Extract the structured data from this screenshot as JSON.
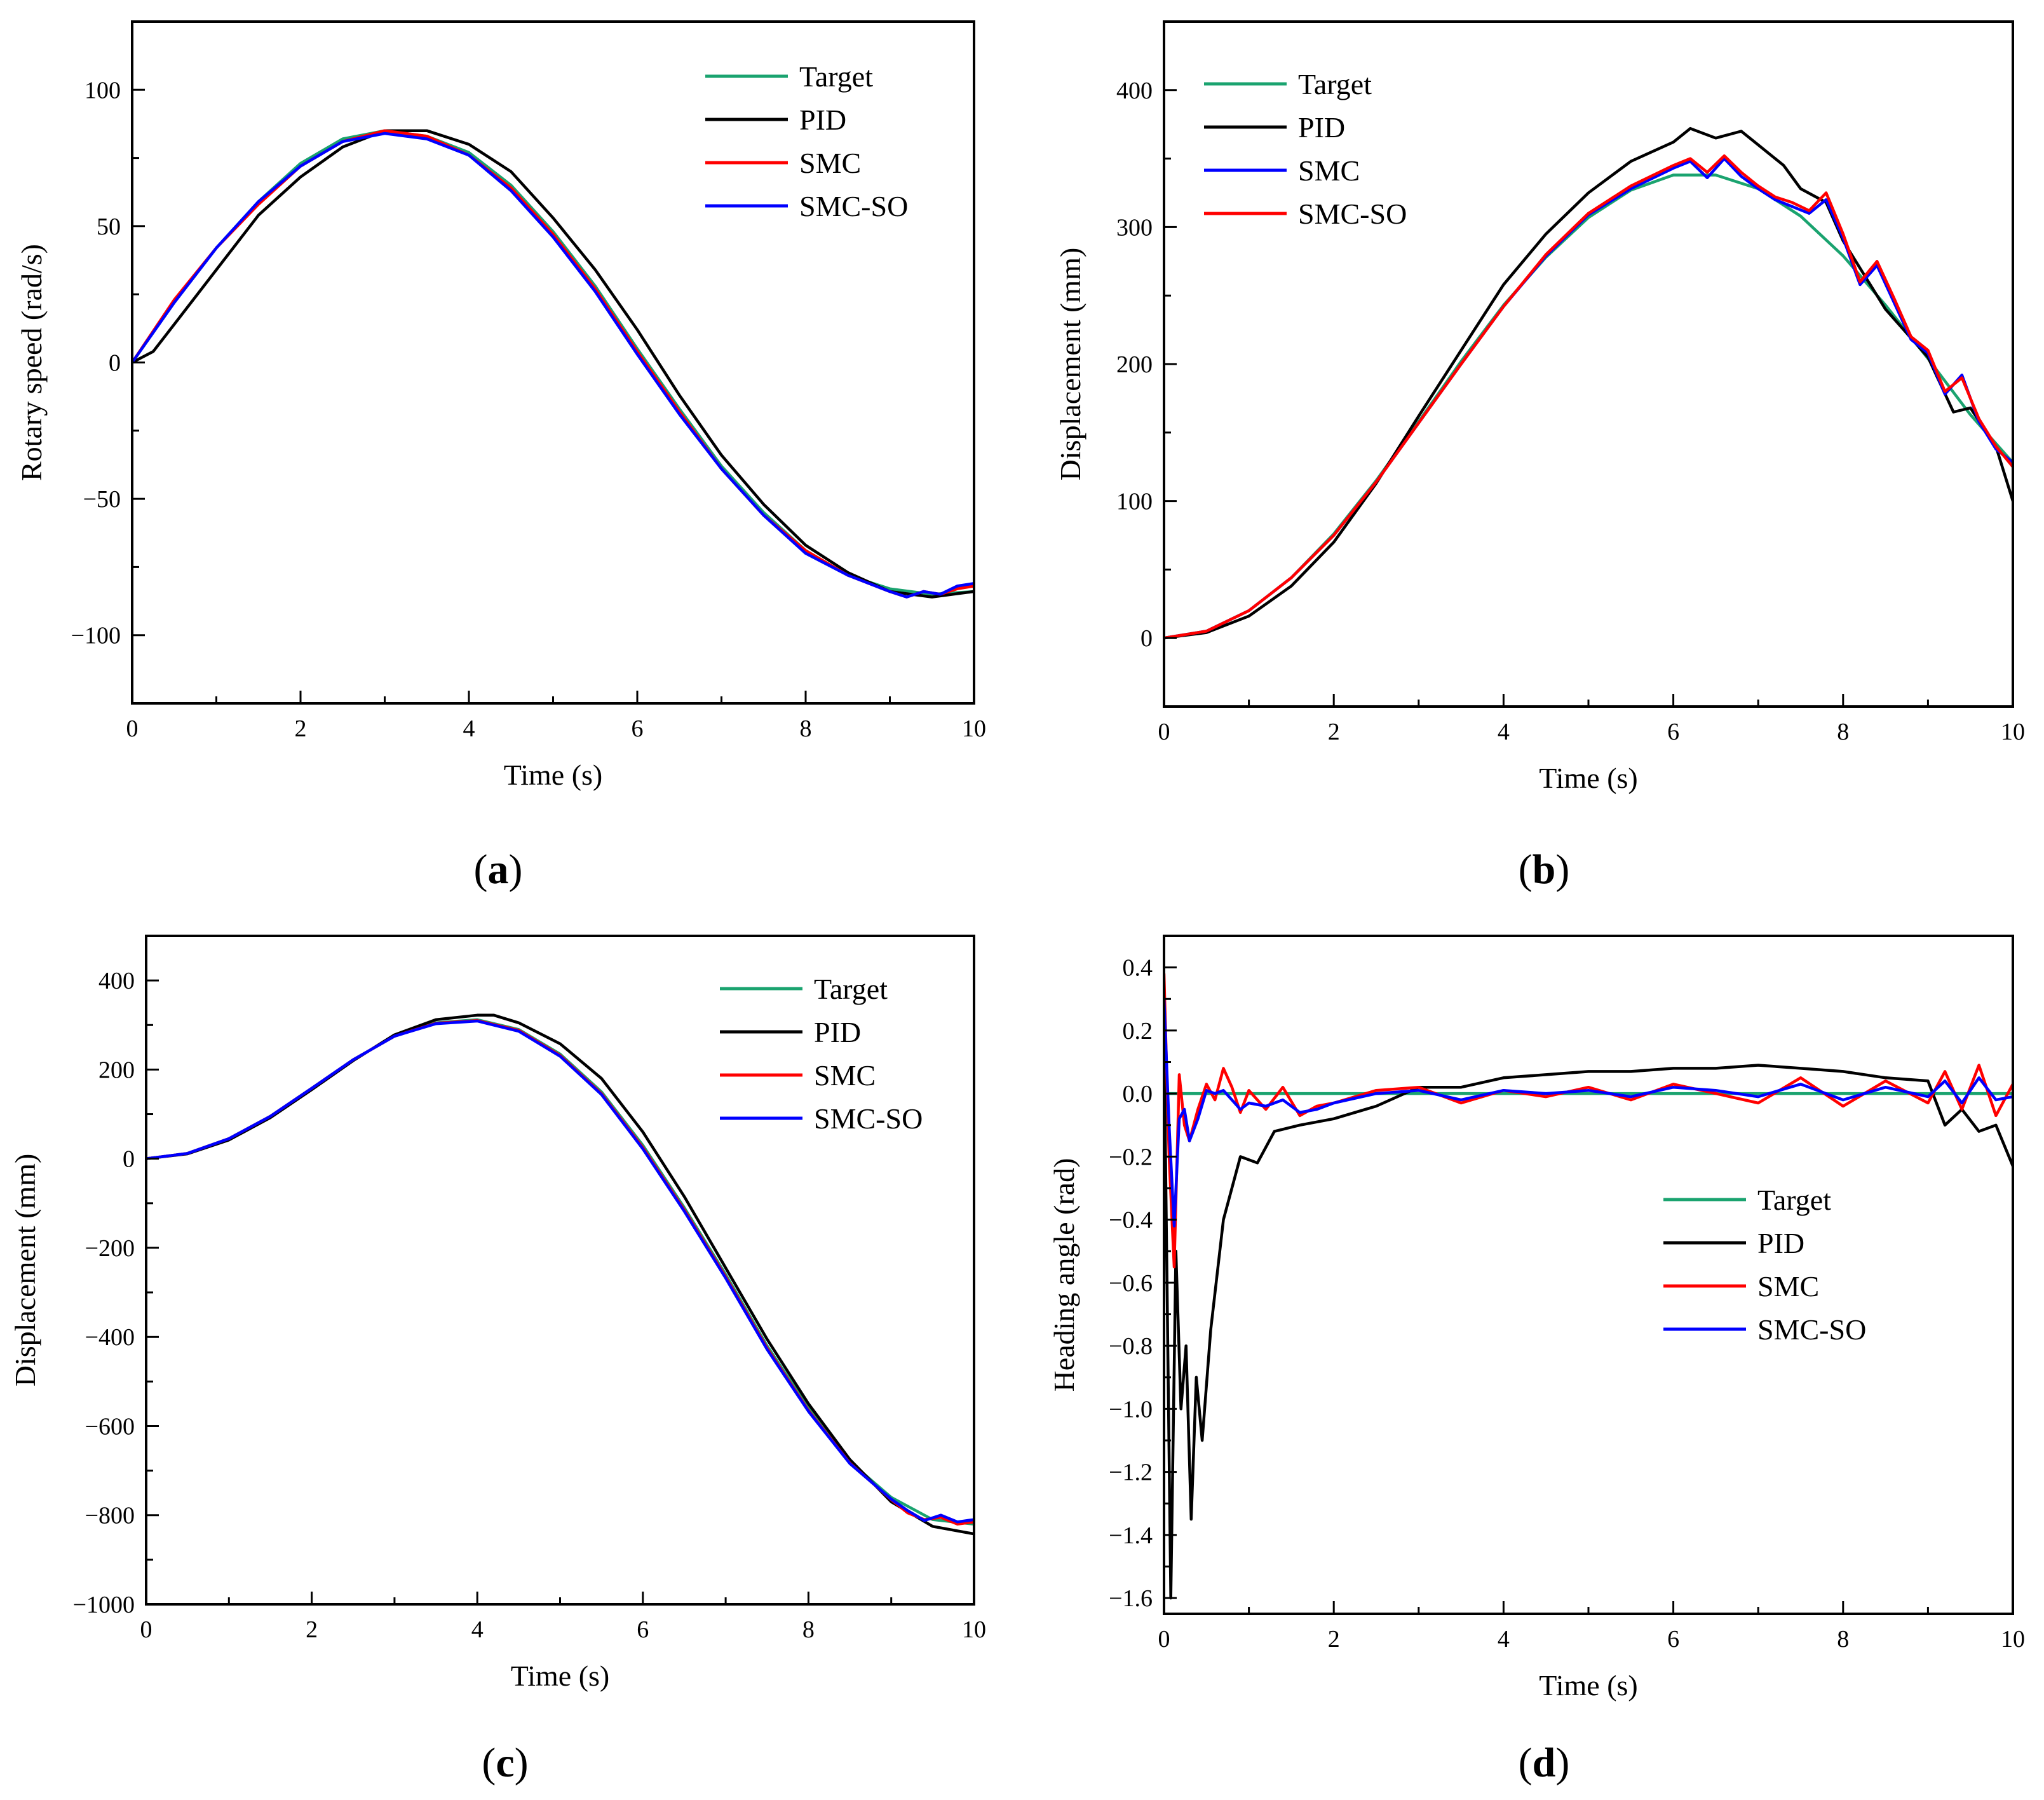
{
  "colors": {
    "Target": "#1aa36f",
    "PID": "#000000",
    "SMC": "#ff0000",
    "SMC-SO": "#0000ff"
  },
  "chart_data": [
    {
      "panel": "a",
      "type": "line",
      "title": "",
      "xlabel": "Time (s)",
      "ylabel": "Rotary speed (rad/s)",
      "xlim": [
        0,
        10
      ],
      "ylim": [
        -125,
        125
      ],
      "xticks": [
        0,
        2,
        4,
        6,
        8,
        10
      ],
      "xtick_labels": [
        "0",
        "2",
        "4",
        "6",
        "8",
        "10"
      ],
      "yticks": [
        -100,
        -50,
        0,
        50,
        100
      ],
      "ytick_labels": [
        "-100",
        "-50",
        "0",
        "50",
        "100"
      ],
      "legend_position": "top-right",
      "series": [
        {
          "name": "Target",
          "x": [
            0,
            0.5,
            1,
            1.5,
            2,
            2.5,
            3,
            3.5,
            4,
            4.5,
            5,
            5.5,
            6,
            6.5,
            7,
            7.5,
            8,
            8.5,
            9,
            9.5,
            10
          ],
          "y": [
            0,
            22,
            42,
            59,
            73,
            82,
            85,
            83,
            77,
            65,
            48,
            28,
            5,
            -17,
            -38,
            -55,
            -69,
            -78,
            -83,
            -85,
            -84
          ]
        },
        {
          "name": "PID",
          "x": [
            0,
            0.25,
            0.5,
            1,
            1.5,
            2,
            2.5,
            3,
            3.5,
            4,
            4.5,
            5,
            5.5,
            6,
            6.5,
            7,
            7.5,
            8,
            8.5,
            9,
            9.5,
            10
          ],
          "y": [
            0,
            4,
            14,
            34,
            54,
            68,
            79,
            85,
            85,
            80,
            70,
            53,
            34,
            12,
            -12,
            -34,
            -52,
            -67,
            -77,
            -84,
            -86,
            -84
          ]
        },
        {
          "name": "SMC",
          "x": [
            0,
            0.5,
            1,
            1.5,
            2,
            2.5,
            3,
            3.5,
            4,
            4.5,
            5,
            5.5,
            6,
            6.5,
            7,
            7.5,
            8,
            8.5,
            9,
            9.2,
            9.4,
            9.6,
            9.8,
            10
          ],
          "y": [
            0,
            23,
            42,
            58,
            72,
            81,
            85,
            83,
            76,
            64,
            47,
            27,
            4,
            -18,
            -39,
            -56,
            -69,
            -78,
            -84,
            -86,
            -84,
            -85,
            -83,
            -82
          ]
        },
        {
          "name": "SMC-SO",
          "x": [
            0,
            0.5,
            1,
            1.5,
            2,
            2.5,
            3,
            3.5,
            4,
            4.5,
            5,
            5.5,
            6,
            6.5,
            7,
            7.5,
            8,
            8.5,
            9,
            9.2,
            9.4,
            9.6,
            9.8,
            10
          ],
          "y": [
            0,
            22,
            42,
            59,
            72,
            81,
            84,
            82,
            76,
            63,
            46,
            26,
            3,
            -19,
            -39,
            -56,
            -70,
            -78,
            -84,
            -86,
            -84,
            -85,
            -82,
            -81
          ]
        }
      ]
    },
    {
      "panel": "b",
      "type": "line",
      "title": "",
      "xlabel": "Time (s)",
      "ylabel": "Displacement (mm)",
      "xlim": [
        0,
        10
      ],
      "ylim": [
        -50,
        450
      ],
      "xticks": [
        0,
        2,
        4,
        6,
        8,
        10
      ],
      "xtick_labels": [
        "0",
        "2",
        "4",
        "6",
        "8",
        "10"
      ],
      "yticks": [
        0,
        100,
        200,
        300,
        400
      ],
      "ytick_labels": [
        "0",
        "100",
        "200",
        "300",
        "400"
      ],
      "legend_position": "top-left",
      "series": [
        {
          "name": "Target",
          "x": [
            0,
            0.5,
            1,
            1.5,
            2,
            2.5,
            3,
            3.5,
            4,
            4.5,
            5,
            5.5,
            6,
            6.5,
            7,
            7.5,
            8,
            8.5,
            9,
            9.5,
            10
          ],
          "y": [
            0,
            5,
            20,
            44,
            76,
            115,
            158,
            202,
            243,
            278,
            307,
            327,
            338,
            338,
            328,
            308,
            279,
            243,
            204,
            163,
            128
          ]
        },
        {
          "name": "PID",
          "x": [
            0,
            0.5,
            1,
            1.5,
            2,
            2.5,
            3,
            3.5,
            4,
            4.5,
            5,
            5.5,
            6,
            6.2,
            6.5,
            6.8,
            7,
            7.3,
            7.5,
            7.8,
            8,
            8.5,
            9,
            9.3,
            9.5,
            9.8,
            10
          ],
          "y": [
            0,
            4,
            16,
            38,
            70,
            113,
            162,
            210,
            258,
            295,
            325,
            348,
            362,
            372,
            365,
            370,
            360,
            345,
            328,
            318,
            290,
            240,
            205,
            165,
            168,
            140,
            100
          ]
        },
        {
          "name": "SMC",
          "x": [
            0,
            0.5,
            1,
            1.5,
            2,
            2.5,
            3,
            3.5,
            4,
            4.5,
            5,
            5.5,
            6,
            6.2,
            6.4,
            6.6,
            6.8,
            7,
            7.2,
            7.4,
            7.6,
            7.8,
            8,
            8.2,
            8.4,
            8.6,
            8.8,
            9,
            9.2,
            9.4,
            9.6,
            9.8,
            10
          ],
          "y": [
            0,
            5,
            20,
            44,
            75,
            114,
            157,
            200,
            242,
            280,
            310,
            330,
            345,
            350,
            340,
            352,
            340,
            330,
            322,
            318,
            312,
            325,
            295,
            260,
            275,
            248,
            220,
            210,
            180,
            190,
            160,
            140,
            125
          ]
        },
        {
          "name": "SMC-SO",
          "x": [
            0,
            0.5,
            1,
            1.5,
            2,
            2.5,
            3,
            3.5,
            4,
            4.5,
            5,
            5.5,
            6,
            6.2,
            6.4,
            6.6,
            6.8,
            7,
            7.2,
            7.4,
            7.6,
            7.8,
            8,
            8.2,
            8.4,
            8.6,
            8.8,
            9,
            9.2,
            9.4,
            9.6,
            9.8,
            10
          ],
          "y": [
            0,
            5,
            20,
            44,
            75,
            114,
            157,
            200,
            242,
            279,
            309,
            328,
            343,
            348,
            336,
            350,
            337,
            328,
            320,
            315,
            310,
            320,
            292,
            258,
            272,
            245,
            218,
            208,
            178,
            192,
            158,
            138,
            128
          ]
        }
      ]
    },
    {
      "panel": "c",
      "type": "line",
      "title": "",
      "xlabel": "Time (s)",
      "ylabel": "Displacement (mm)",
      "xlim": [
        0,
        10
      ],
      "ylim": [
        -1000,
        500
      ],
      "xticks": [
        0,
        2,
        4,
        6,
        8,
        10
      ],
      "xtick_labels": [
        "0",
        "2",
        "4",
        "6",
        "8",
        "10"
      ],
      "yticks": [
        -1000,
        -800,
        -600,
        -400,
        -200,
        0,
        200,
        400
      ],
      "ytick_labels": [
        "-1000",
        "-800",
        "-600",
        "-400",
        "-200",
        "0",
        "200",
        "400"
      ],
      "legend_position": "top-right",
      "series": [
        {
          "name": "Target",
          "x": [
            0,
            0.5,
            1,
            1.5,
            2,
            2.5,
            3,
            3.5,
            4,
            4.5,
            5,
            5.5,
            6,
            6.5,
            7,
            7.5,
            8,
            8.5,
            9,
            9.5,
            10
          ],
          "y": [
            0,
            12,
            45,
            95,
            158,
            222,
            275,
            305,
            312,
            290,
            235,
            150,
            30,
            -110,
            -260,
            -420,
            -560,
            -680,
            -760,
            -810,
            -820
          ]
        },
        {
          "name": "PID",
          "x": [
            0,
            0.5,
            1,
            1.5,
            2,
            2.5,
            3,
            3.5,
            4,
            4.2,
            4.5,
            5,
            5.5,
            6,
            6.5,
            7,
            7.5,
            8,
            8.5,
            9,
            9.5,
            10
          ],
          "y": [
            0,
            11,
            42,
            92,
            155,
            220,
            278,
            312,
            322,
            322,
            305,
            258,
            180,
            60,
            -85,
            -245,
            -405,
            -550,
            -675,
            -770,
            -825,
            -842
          ]
        },
        {
          "name": "SMC",
          "x": [
            0,
            0.5,
            1,
            1.5,
            2,
            2.5,
            3,
            3.5,
            4,
            4.5,
            5,
            5.5,
            6,
            6.5,
            7,
            7.5,
            8,
            8.5,
            9,
            9.2,
            9.4,
            9.6,
            9.8,
            10
          ],
          "y": [
            0,
            12,
            45,
            95,
            158,
            222,
            275,
            304,
            310,
            288,
            232,
            146,
            25,
            -115,
            -265,
            -425,
            -565,
            -683,
            -765,
            -795,
            -810,
            -805,
            -820,
            -815
          ]
        },
        {
          "name": "SMC-SO",
          "x": [
            0,
            0.5,
            1,
            1.5,
            2,
            2.5,
            3,
            3.5,
            4,
            4.5,
            5,
            5.5,
            6,
            6.5,
            7,
            7.5,
            8,
            8.5,
            9,
            9.2,
            9.4,
            9.6,
            9.8,
            10
          ],
          "y": [
            0,
            12,
            45,
            95,
            158,
            222,
            275,
            303,
            309,
            286,
            230,
            144,
            22,
            -118,
            -268,
            -428,
            -567,
            -684,
            -764,
            -790,
            -812,
            -800,
            -815,
            -810
          ]
        }
      ]
    },
    {
      "panel": "d",
      "type": "line",
      "title": "",
      "xlabel": "Time (s)",
      "ylabel": "Heading angle (rad)",
      "xlim": [
        0,
        10
      ],
      "ylim": [
        -1.65,
        0.5
      ],
      "xticks": [
        0,
        2,
        4,
        6,
        8,
        10
      ],
      "xtick_labels": [
        "0",
        "2",
        "4",
        "6",
        "8",
        "10"
      ],
      "yticks": [
        -1.6,
        -1.4,
        -1.2,
        -1.0,
        -0.8,
        -0.6,
        -0.4,
        -0.2,
        0.0,
        0.2,
        0.4
      ],
      "ytick_labels": [
        "-1.6",
        "-1.4",
        "-1.2",
        "-1.0",
        "-0.8",
        "-0.6",
        "-0.4",
        "-0.2",
        "0.0",
        "0.2",
        "0.4"
      ],
      "legend_position": "center-right",
      "series": [
        {
          "name": "Target",
          "x": [
            0,
            10
          ],
          "y": [
            0,
            0
          ]
        },
        {
          "name": "PID",
          "x": [
            0,
            0.08,
            0.14,
            0.2,
            0.26,
            0.32,
            0.38,
            0.45,
            0.55,
            0.7,
            0.9,
            1.1,
            1.3,
            1.6,
            2.0,
            2.5,
            3.0,
            3.5,
            4.0,
            4.5,
            5.0,
            5.5,
            6.0,
            6.5,
            7.0,
            7.5,
            8.0,
            8.5,
            9.0,
            9.2,
            9.4,
            9.6,
            9.8,
            10
          ],
          "y": [
            0.2,
            -1.6,
            -0.5,
            -1.0,
            -0.8,
            -1.35,
            -0.9,
            -1.1,
            -0.75,
            -0.4,
            -0.2,
            -0.22,
            -0.12,
            -0.1,
            -0.08,
            -0.04,
            0.02,
            0.02,
            0.05,
            0.06,
            0.07,
            0.07,
            0.08,
            0.08,
            0.09,
            0.08,
            0.07,
            0.05,
            0.04,
            -0.1,
            -0.05,
            -0.12,
            -0.1,
            -0.23
          ]
        },
        {
          "name": "SMC",
          "x": [
            0,
            0.06,
            0.12,
            0.18,
            0.24,
            0.3,
            0.4,
            0.5,
            0.6,
            0.7,
            0.8,
            0.9,
            1.0,
            1.2,
            1.4,
            1.6,
            1.8,
            2.0,
            2.5,
            3.0,
            3.5,
            4.0,
            4.5,
            5.0,
            5.5,
            6.0,
            6.5,
            7.0,
            7.5,
            8.0,
            8.5,
            9.0,
            9.2,
            9.4,
            9.6,
            9.8,
            10
          ],
          "y": [
            0.38,
            -0.2,
            -0.55,
            0.06,
            -0.1,
            -0.15,
            -0.05,
            0.03,
            -0.02,
            0.08,
            0.02,
            -0.06,
            0.01,
            -0.05,
            0.02,
            -0.07,
            -0.04,
            -0.03,
            0.01,
            0.02,
            -0.03,
            0.01,
            -0.01,
            0.02,
            -0.02,
            0.03,
            0.0,
            -0.03,
            0.05,
            -0.04,
            0.04,
            -0.03,
            0.07,
            -0.05,
            0.09,
            -0.07,
            0.03
          ]
        },
        {
          "name": "SMC-SO",
          "x": [
            0,
            0.06,
            0.12,
            0.18,
            0.24,
            0.3,
            0.4,
            0.5,
            0.6,
            0.7,
            0.8,
            0.9,
            1.0,
            1.2,
            1.4,
            1.6,
            1.8,
            2.0,
            2.5,
            3.0,
            3.5,
            4.0,
            4.5,
            5.0,
            5.5,
            6.0,
            6.5,
            7.0,
            7.5,
            8.0,
            8.5,
            9.0,
            9.2,
            9.4,
            9.6,
            9.8,
            10
          ],
          "y": [
            0.3,
            -0.1,
            -0.42,
            -0.08,
            -0.05,
            -0.15,
            -0.08,
            0.01,
            0.0,
            0.01,
            -0.02,
            -0.05,
            -0.03,
            -0.04,
            -0.02,
            -0.06,
            -0.05,
            -0.03,
            0.0,
            0.01,
            -0.02,
            0.01,
            0.0,
            0.01,
            -0.01,
            0.02,
            0.01,
            -0.01,
            0.03,
            -0.02,
            0.02,
            -0.01,
            0.04,
            -0.03,
            0.05,
            -0.02,
            -0.01
          ]
        }
      ]
    }
  ],
  "panel_labels": [
    {
      "open": "(",
      "letter": "a",
      "close": ")"
    },
    {
      "open": "(",
      "letter": "b",
      "close": ")"
    },
    {
      "open": "(",
      "letter": "c",
      "close": ")"
    },
    {
      "open": "(",
      "letter": "d",
      "close": ")"
    }
  ]
}
